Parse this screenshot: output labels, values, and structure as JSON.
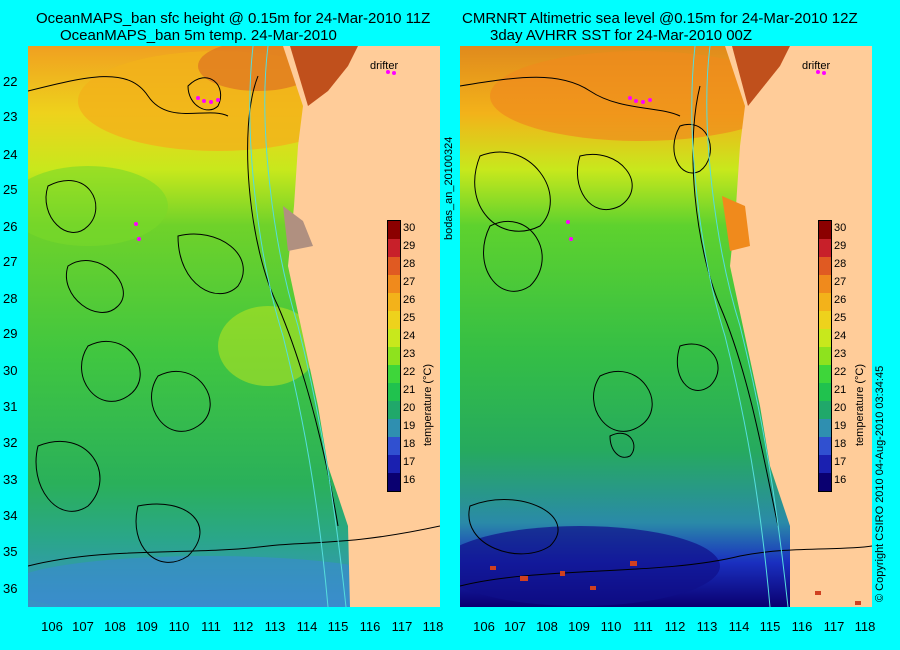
{
  "titles": {
    "left_line1": "OceanMAPS_ban sfc height @ 0.15m for 24-Mar-2010 11Z",
    "left_line2": "OceanMAPS_ban 5m temp. 24-Mar-2010",
    "right_line1": "CMRNRT Altimetric sea level  @0.15m  for 24-Mar-2010 12Z",
    "right_line2": "3day AVHRR SST for 24-Mar-2010 00Z"
  },
  "side_labels": {
    "run_id": "bodas_an_20100324",
    "copyright": "© Copyright CSIRO 2010   04-Aug-2010 03:34:45"
  },
  "drifter_label": "drifter",
  "axes": {
    "lat_ticks": [
      "22",
      "23",
      "24",
      "25",
      "26",
      "27",
      "28",
      "29",
      "30",
      "31",
      "32",
      "33",
      "34",
      "35",
      "36"
    ],
    "lon_ticks": [
      "106",
      "107",
      "108",
      "109",
      "110",
      "111",
      "112",
      "113",
      "114",
      "115",
      "116",
      "117",
      "118"
    ]
  },
  "colorbar": {
    "label": "temperature (°C)",
    "ticks": [
      "30",
      "29",
      "28",
      "27",
      "26",
      "25",
      "24",
      "23",
      "22",
      "21",
      "20",
      "19",
      "18",
      "17",
      "16"
    ],
    "colors": [
      "#8b0000",
      "#c8202a",
      "#e05a22",
      "#f08a1c",
      "#f3b21a",
      "#eed21c",
      "#c8e81c",
      "#8ee21e",
      "#3ed63a",
      "#20c24e",
      "#20a86a",
      "#2f8fb0",
      "#3050d0",
      "#1a20b0",
      "#0a0070"
    ]
  },
  "colors": {
    "background": "#00ffff",
    "land": "#ffcc99",
    "contour": "#000000",
    "isobath": "#55dddd",
    "drifter": "#ff00ff"
  }
}
